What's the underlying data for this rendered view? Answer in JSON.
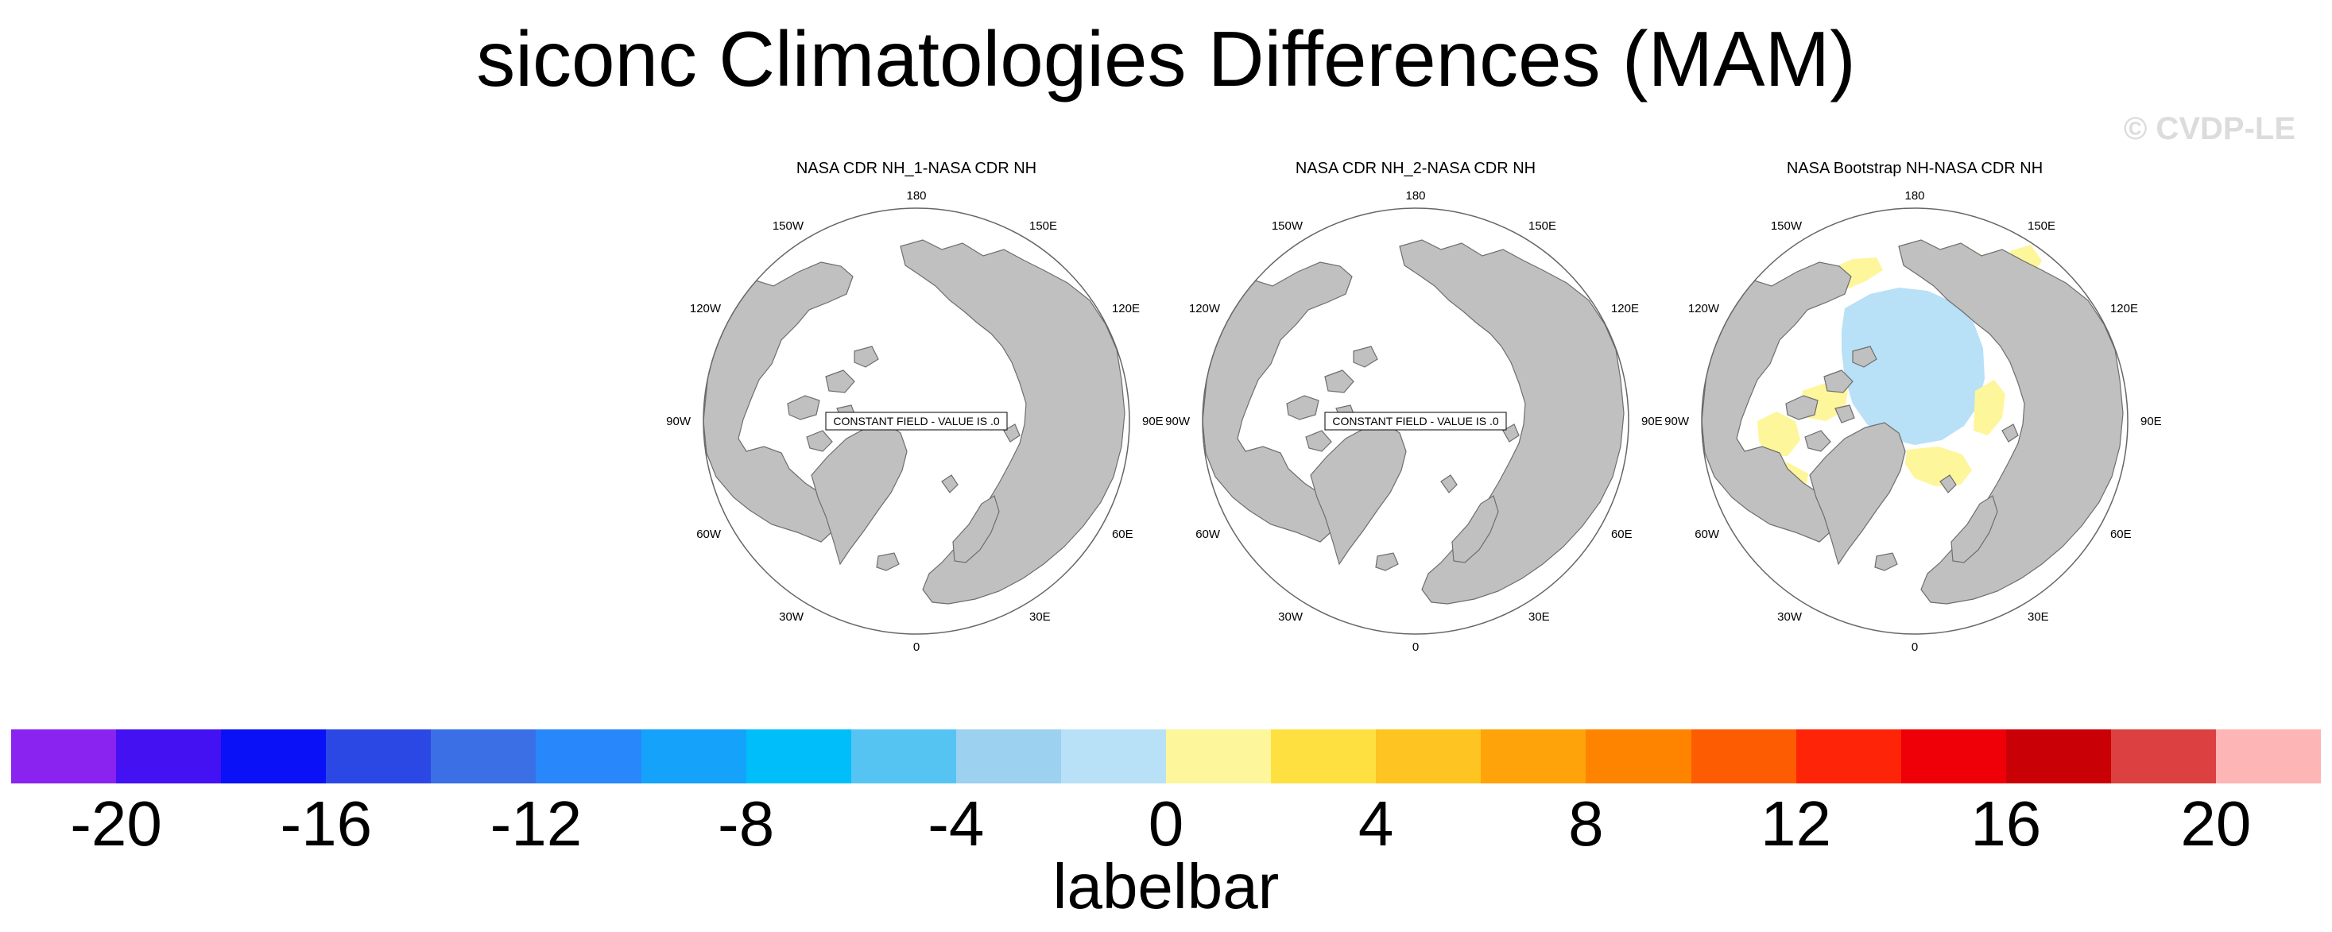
{
  "title": "siconc Climatologies Differences (MAM)",
  "watermark": "© CVDP-LE",
  "panels": [
    {
      "title": "NASA CDR NH_1-NASA CDR NH",
      "constant_label": "CONSTANT FIELD - VALUE IS .0",
      "show_anomaly": false
    },
    {
      "title": "NASA CDR NH_2-NASA CDR NH",
      "constant_label": "CONSTANT FIELD - VALUE IS .0",
      "show_anomaly": false
    },
    {
      "title": "NASA Bootstrap NH-NASA CDR NH",
      "constant_label": "",
      "show_anomaly": true
    }
  ],
  "longitude_labels": [
    "180",
    "150E",
    "120E",
    "90E",
    "60E",
    "30E",
    "0",
    "30W",
    "60W",
    "90W",
    "120W",
    "150W"
  ],
  "colorbar": {
    "label": "labelbar",
    "ticks": [
      "-20",
      "-16",
      "-12",
      "-8",
      "-4",
      "0",
      "4",
      "8",
      "12",
      "16",
      "20"
    ],
    "colors": [
      "#8a23ef",
      "#4411f2",
      "#0a11f6",
      "#2c48e4",
      "#3a6fe6",
      "#2888fb",
      "#14a2fb",
      "#00bef9",
      "#56c4f3",
      "#9cd1ef",
      "#b8e0f6",
      "#fdf69b",
      "#fee140",
      "#fec421",
      "#fea40a",
      "#fe8400",
      "#fe5c02",
      "#fe2408",
      "#ef0008",
      "#c90005",
      "#dd4040",
      "#feb5b5"
    ]
  },
  "chart_data": {
    "type": "heatmap",
    "title": "siconc Climatologies Differences (MAM)",
    "subplots": [
      {
        "title": "NASA CDR NH_1-NASA CDR NH",
        "constant_value": 0
      },
      {
        "title": "NASA CDR NH_2-NASA CDR NH",
        "constant_value": 0
      },
      {
        "title": "NASA Bootstrap NH-NASA CDR NH",
        "value_range_visible": [
          -4,
          4
        ]
      }
    ],
    "colorbar_levels": [
      -20,
      -18,
      -16,
      -14,
      -12,
      -10,
      -8,
      -6,
      -4,
      -2,
      0,
      2,
      4,
      6,
      8,
      10,
      12,
      14,
      16,
      18,
      20
    ],
    "colorbar_tick_labels": [
      "-20",
      "-16",
      "-12",
      "-8",
      "-4",
      "0",
      "4",
      "8",
      "12",
      "16",
      "20"
    ],
    "colorbar_label": "labelbar",
    "projection": "north polar stereographic"
  }
}
